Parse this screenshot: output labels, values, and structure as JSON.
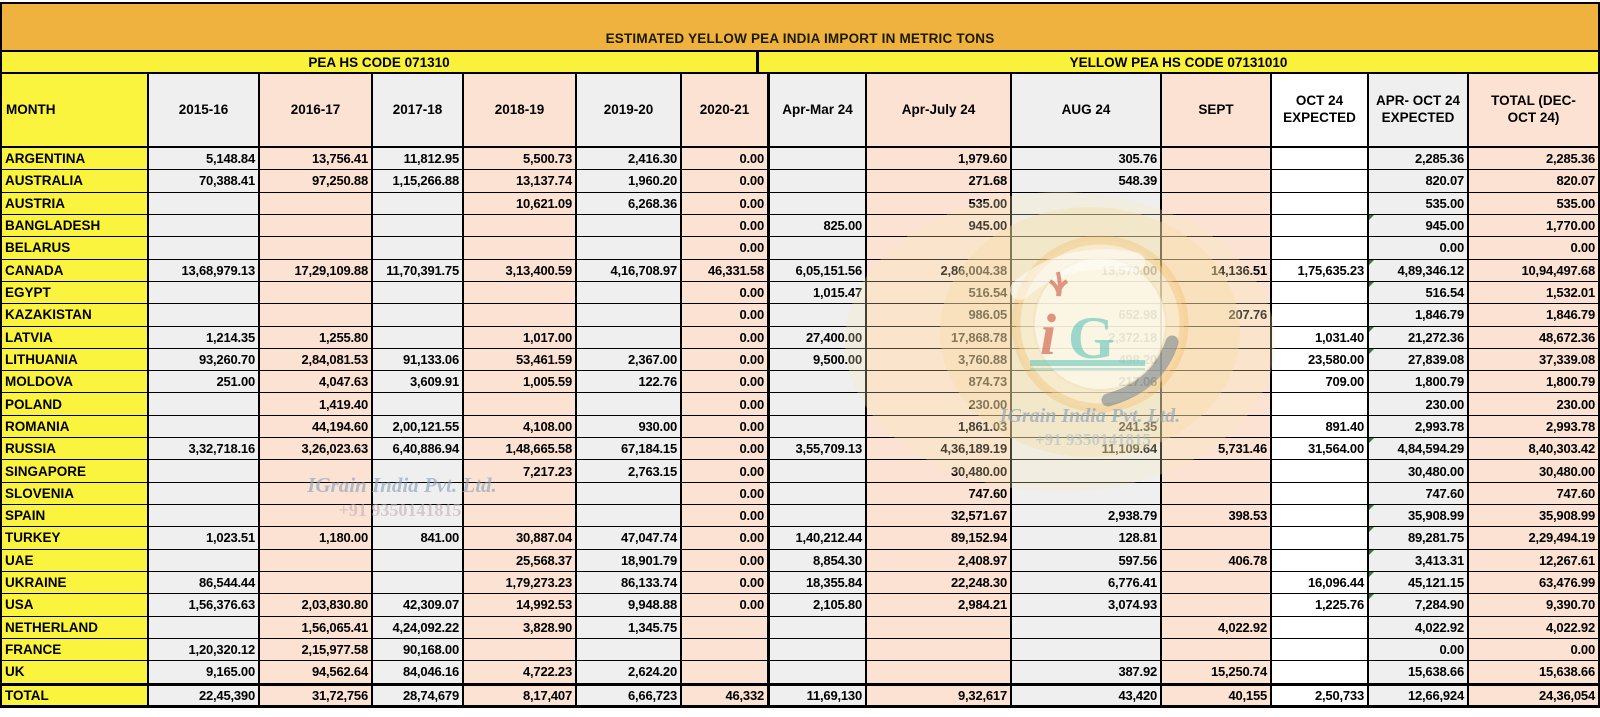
{
  "title": "ESTIMATED YELLOW PEA INDIA IMPORT IN METRIC TONS",
  "sections": {
    "left": "PEA HS CODE 071310",
    "right": "YELLOW PEA HS CODE 07131010"
  },
  "columns": [
    "MONTH",
    "2015-16",
    "2016-17",
    "2017-18",
    "2018-19",
    "2019-20",
    "2020-21",
    "Apr-Mar 24",
    "Apr-July 24",
    "AUG 24",
    "SEPT",
    "OCT 24\nEXPECTED",
    "APR- OCT 24\nEXPECTED",
    "TOTAL (DEC-\nOCT 24)"
  ],
  "rows": [
    {
      "label": "ARGENTINA",
      "flag": false,
      "values": [
        "5,148.84",
        "13,756.41",
        "11,812.95",
        "5,500.73",
        "2,416.30",
        "0.00",
        "",
        "1,979.60",
        "305.76",
        "",
        "",
        "2,285.36",
        "2,285.36"
      ]
    },
    {
      "label": "AUSTRALIA",
      "flag": false,
      "values": [
        "70,388.41",
        "97,250.88",
        "1,15,266.88",
        "13,137.74",
        "1,960.20",
        "0.00",
        "",
        "271.68",
        "548.39",
        "",
        "",
        "820.07",
        "820.07"
      ]
    },
    {
      "label": "AUSTRIA",
      "flag": false,
      "values": [
        "",
        "",
        "",
        "10,621.09",
        "6,268.36",
        "0.00",
        "",
        "535.00",
        "",
        "",
        "",
        "535.00",
        "535.00"
      ]
    },
    {
      "label": "BANGLADESH",
      "flag": true,
      "values": [
        "",
        "",
        "",
        "",
        "",
        "0.00",
        "825.00",
        "945.00",
        "",
        "",
        "",
        "945.00",
        "1,770.00"
      ]
    },
    {
      "label": "BELARUS",
      "flag": false,
      "values": [
        "",
        "",
        "",
        "",
        "",
        "0.00",
        "",
        "",
        "",
        "",
        "",
        "0.00",
        "0.00"
      ]
    },
    {
      "label": "CANADA",
      "flag": true,
      "values": [
        "13,68,979.13",
        "17,29,109.88",
        "11,70,391.75",
        "3,13,400.59",
        "4,16,708.97",
        "46,331.58",
        "6,05,151.56",
        "2,86,004.38",
        "13,570.00",
        "14,136.51",
        "1,75,635.23",
        "4,89,346.12",
        "10,94,497.68"
      ]
    },
    {
      "label": "EGYPT",
      "flag": true,
      "values": [
        "",
        "",
        "",
        "",
        "",
        "0.00",
        "1,015.47",
        "516.54",
        "",
        "",
        "",
        "516.54",
        "1,532.01"
      ]
    },
    {
      "label": "KAZAKISTAN",
      "flag": false,
      "values": [
        "",
        "",
        "",
        "",
        "",
        "0.00",
        "",
        "986.05",
        "652.98",
        "207.76",
        "",
        "1,846.79",
        "1,846.79"
      ]
    },
    {
      "label": "LATVIA",
      "flag": true,
      "values": [
        "1,214.35",
        "1,255.80",
        "",
        "1,017.00",
        "",
        "0.00",
        "27,400.00",
        "17,868.78",
        "2,372.18",
        "",
        "1,031.40",
        "21,272.36",
        "48,672.36"
      ]
    },
    {
      "label": "LITHUANIA",
      "flag": true,
      "values": [
        "93,260.70",
        "2,84,081.53",
        "91,133.06",
        "53,461.59",
        "2,367.00",
        "0.00",
        "9,500.00",
        "3,760.88",
        "498.20",
        "",
        "23,580.00",
        "27,839.08",
        "37,339.08"
      ]
    },
    {
      "label": "MOLDOVA",
      "flag": false,
      "values": [
        "251.00",
        "4,047.63",
        "3,609.91",
        "1,005.59",
        "122.76",
        "0.00",
        "",
        "874.73",
        "217.06",
        "",
        "709.00",
        "1,800.79",
        "1,800.79"
      ]
    },
    {
      "label": "POLAND",
      "flag": false,
      "values": [
        "",
        "1,419.40",
        "",
        "",
        "",
        "0.00",
        "",
        "230.00",
        "",
        "",
        "",
        "230.00",
        "230.00"
      ]
    },
    {
      "label": "ROMANIA",
      "flag": false,
      "values": [
        "",
        "44,194.60",
        "2,00,121.55",
        "4,108.00",
        "930.00",
        "0.00",
        "",
        "1,861.03",
        "241.35",
        "",
        "891.40",
        "2,993.78",
        "2,993.78"
      ]
    },
    {
      "label": "RUSSIA",
      "flag": true,
      "values": [
        "3,32,718.16",
        "3,26,023.63",
        "6,40,886.94",
        "1,48,665.58",
        "67,184.15",
        "0.00",
        "3,55,709.13",
        "4,36,189.19",
        "11,109.64",
        "5,731.46",
        "31,564.00",
        "4,84,594.29",
        "8,40,303.42"
      ]
    },
    {
      "label": "SINGAPORE",
      "flag": false,
      "values": [
        "",
        "",
        "",
        "7,217.23",
        "2,763.15",
        "0.00",
        "",
        "30,480.00",
        "",
        "",
        "",
        "30,480.00",
        "30,480.00"
      ]
    },
    {
      "label": "SLOVENIA",
      "flag": false,
      "values": [
        "",
        "",
        "",
        "",
        "",
        "0.00",
        "",
        "747.60",
        "",
        "",
        "",
        "747.60",
        "747.60"
      ]
    },
    {
      "label": "SPAIN",
      "flag": true,
      "values": [
        "",
        "",
        "",
        "",
        "",
        "0.00",
        "",
        "32,571.67",
        "2,938.79",
        "398.53",
        "",
        "35,908.99",
        "35,908.99"
      ]
    },
    {
      "label": "TURKEY",
      "flag": true,
      "values": [
        "1,023.51",
        "1,180.00",
        "841.00",
        "30,887.04",
        "47,047.74",
        "0.00",
        "1,40,212.44",
        "89,152.94",
        "128.81",
        "",
        "",
        "89,281.75",
        "2,29,494.19"
      ]
    },
    {
      "label": "UAE",
      "flag": true,
      "values": [
        "",
        "",
        "",
        "25,568.37",
        "18,901.79",
        "0.00",
        "8,854.30",
        "2,408.97",
        "597.56",
        "406.78",
        "",
        "3,413.31",
        "12,267.61"
      ]
    },
    {
      "label": "UKRAINE",
      "flag": true,
      "values": [
        "86,544.44",
        "",
        "",
        "1,79,273.23",
        "86,133.74",
        "0.00",
        "18,355.84",
        "22,248.30",
        "6,776.41",
        "",
        "16,096.44",
        "45,121.15",
        "63,476.99"
      ]
    },
    {
      "label": "USA",
      "flag": true,
      "values": [
        "1,56,376.63",
        "2,03,830.80",
        "42,309.07",
        "14,992.53",
        "9,948.88",
        "0.00",
        "2,105.80",
        "2,984.21",
        "3,074.93",
        "",
        "1,225.76",
        "7,284.90",
        "9,390.70"
      ]
    },
    {
      "label": "NETHERLAND",
      "flag": false,
      "values": [
        "",
        "1,56,065.41",
        "4,24,092.22",
        "3,828.90",
        "1,345.75",
        "",
        "",
        "",
        "",
        "4,022.92",
        "",
        "4,022.92",
        "4,022.92"
      ]
    },
    {
      "label": "FRANCE",
      "flag": false,
      "values": [
        "1,20,320.12",
        "2,15,977.58",
        "90,168.00",
        "",
        "",
        "",
        "",
        "",
        "",
        "",
        "",
        "0.00",
        "0.00"
      ]
    },
    {
      "label": "UK",
      "flag": false,
      "values": [
        "9,165.00",
        "94,562.64",
        "84,046.16",
        "4,722.23",
        "2,624.20",
        "",
        "",
        "",
        "387.92",
        "15,250.74",
        "",
        "15,638.66",
        "15,638.66"
      ]
    },
    {
      "label": "TOTAL",
      "flag": false,
      "values": [
        "22,45,390",
        "31,72,756",
        "28,74,679",
        "8,17,407",
        "6,66,723",
        "46,332",
        "11,69,130",
        "9,32,617",
        "43,420",
        "40,155",
        "2,50,733",
        "12,66,924",
        "24,36,054"
      ]
    }
  ],
  "watermark": {
    "line1": "IGrain India Pvt. Ltd.",
    "line2": "+91 9350141815",
    "logo_i": "i",
    "logo_g": "G"
  },
  "colors": {
    "band_orange": "#F0B23E",
    "band_yellow": "#FAF23A",
    "cell_yellow": "#FBF43E",
    "col_gray": "#EFEFEF",
    "col_peach": "#FBE2D2",
    "col_white": "#FFFFFF",
    "flag_green": "#2E7D32"
  }
}
